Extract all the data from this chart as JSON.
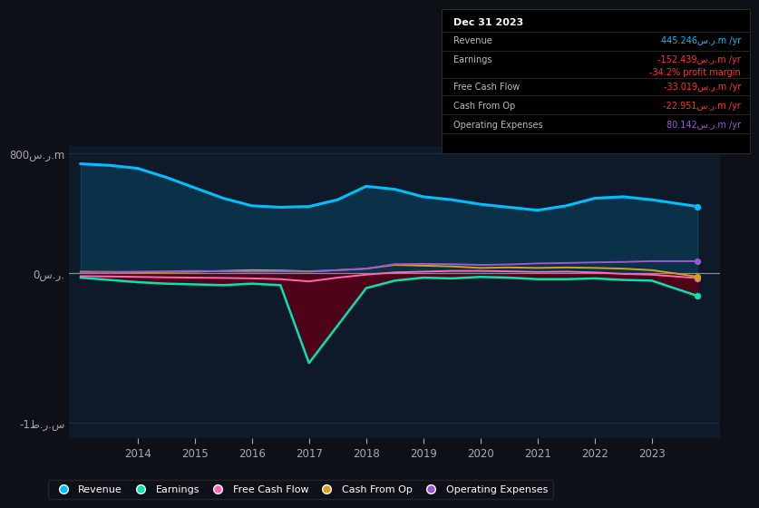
{
  "background_color": "#0d1117",
  "plot_bg_color": "#0e1929",
  "years": [
    2013.0,
    2013.5,
    2014.0,
    2014.5,
    2015.0,
    2015.5,
    2016.0,
    2016.5,
    2017.0,
    2017.5,
    2018.0,
    2018.5,
    2019.0,
    2019.5,
    2020.0,
    2020.5,
    2021.0,
    2021.5,
    2022.0,
    2022.5,
    2023.0,
    2023.8
  ],
  "revenue": [
    730,
    720,
    700,
    640,
    570,
    500,
    450,
    440,
    445,
    490,
    580,
    560,
    510,
    490,
    460,
    440,
    420,
    450,
    500,
    510,
    490,
    445
  ],
  "earnings": [
    -30,
    -45,
    -60,
    -70,
    -75,
    -80,
    -70,
    -80,
    -600,
    -350,
    -100,
    -50,
    -30,
    -35,
    -25,
    -30,
    -40,
    -40,
    -35,
    -45,
    -50,
    -152
  ],
  "free_cash_flow": [
    -20,
    -22,
    -25,
    -28,
    -30,
    -32,
    -35,
    -40,
    -55,
    -30,
    -10,
    5,
    10,
    15,
    15,
    12,
    8,
    10,
    5,
    -5,
    -10,
    -33
  ],
  "cash_from_op": [
    10,
    8,
    5,
    8,
    10,
    15,
    20,
    18,
    12,
    20,
    30,
    55,
    50,
    45,
    35,
    38,
    35,
    38,
    35,
    30,
    20,
    -23
  ],
  "operating_expenses": [
    5,
    8,
    10,
    12,
    15,
    12,
    10,
    12,
    10,
    20,
    30,
    60,
    62,
    60,
    55,
    58,
    65,
    68,
    72,
    75,
    80,
    80
  ],
  "revenue_color": "#00bfff",
  "earnings_color": "#00e5b0",
  "free_cash_flow_color": "#ff69b4",
  "cash_from_op_color": "#d4a020",
  "operating_expenses_color": "#9b59d0",
  "earnings_fill_color": "#5a0015",
  "zero_line_color": "#888888",
  "grid_color": "#1e2d42",
  "ylim_top": 850,
  "ylim_bottom": -1100,
  "ytick_top": 800,
  "ytick_zero": 0,
  "ytick_bottom": -1000,
  "ytick_top_label": "800س.ر.m",
  "ytick_zero_label": "0س.ر.",
  "ytick_bottom_label": "-1ط.ر.س",
  "xlim_left": 2012.8,
  "xlim_right": 2024.2,
  "xticks": [
    2014,
    2015,
    2016,
    2017,
    2018,
    2019,
    2020,
    2021,
    2022,
    2023
  ],
  "info_box_title": "Dec 31 2023",
  "info_rows": [
    {
      "label": "Revenue",
      "value": "445.246س.ر.m /yr",
      "value_color": "#00bfff"
    },
    {
      "label": "Earnings",
      "value": "-152.439س.ر.m /yr",
      "value_color": "#ff3333"
    },
    {
      "label": "",
      "value": "-34.2% profit margin",
      "value_color": "#ff3333"
    },
    {
      "label": "Free Cash Flow",
      "value": "-33.019س.ر.m /yr",
      "value_color": "#ff3333"
    },
    {
      "label": "Cash From Op",
      "value": "-22.951س.ر.m /yr",
      "value_color": "#ff3333"
    },
    {
      "label": "Operating Expenses",
      "value": "80.142س.ر.m /yr",
      "value_color": "#9b59d0"
    }
  ],
  "legend_items": [
    {
      "label": "Revenue",
      "color": "#00bfff"
    },
    {
      "label": "Earnings",
      "color": "#00e5b0"
    },
    {
      "label": "Free Cash Flow",
      "color": "#ff69b4"
    },
    {
      "label": "Cash From Op",
      "color": "#d4a020"
    },
    {
      "label": "Operating Expenses",
      "color": "#9b59d0"
    }
  ]
}
